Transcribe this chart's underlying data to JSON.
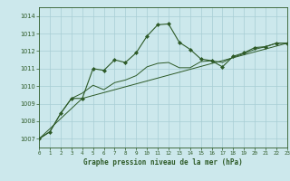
{
  "title": "Graphe pression niveau de la mer (hPa)",
  "bg_color": "#cce8ec",
  "grid_color": "#a8cdd4",
  "line_color": "#2d5a27",
  "marker_color": "#2d5a27",
  "xlim": [
    0,
    23
  ],
  "ylim": [
    1006.5,
    1014.5
  ],
  "xticks": [
    0,
    1,
    2,
    3,
    4,
    5,
    6,
    7,
    8,
    9,
    10,
    11,
    12,
    13,
    14,
    15,
    16,
    17,
    18,
    19,
    20,
    21,
    22,
    23
  ],
  "yticks": [
    1007,
    1008,
    1009,
    1010,
    1011,
    1012,
    1013,
    1014
  ],
  "series1_x": [
    0,
    1,
    2,
    3,
    4,
    5,
    6,
    7,
    8,
    9,
    10,
    11,
    12,
    13,
    14,
    15,
    16,
    17,
    18,
    19,
    20,
    21,
    22,
    23
  ],
  "series1_y": [
    1007.0,
    1007.4,
    1008.45,
    1009.3,
    1009.3,
    1011.0,
    1010.9,
    1011.5,
    1011.35,
    1011.9,
    1012.85,
    1013.5,
    1013.55,
    1012.5,
    1012.1,
    1011.55,
    1011.45,
    1011.1,
    1011.7,
    1011.9,
    1012.2,
    1012.25,
    1012.45,
    1012.45
  ],
  "series2_x": [
    0,
    1,
    2,
    3,
    4,
    5,
    6,
    7,
    8,
    9,
    10,
    11,
    12,
    13,
    14,
    15,
    16,
    17,
    18,
    19,
    20,
    21,
    22,
    23
  ],
  "series2_y": [
    1007.0,
    1007.4,
    1008.45,
    1009.3,
    1009.6,
    1010.05,
    1009.8,
    1010.2,
    1010.35,
    1010.6,
    1011.1,
    1011.3,
    1011.35,
    1011.05,
    1011.05,
    1011.4,
    1011.45,
    1011.35,
    1011.65,
    1011.85,
    1012.1,
    1012.25,
    1012.45,
    1012.45
  ],
  "series3_x": [
    0,
    4,
    23
  ],
  "series3_y": [
    1007.0,
    1009.3,
    1012.45
  ]
}
